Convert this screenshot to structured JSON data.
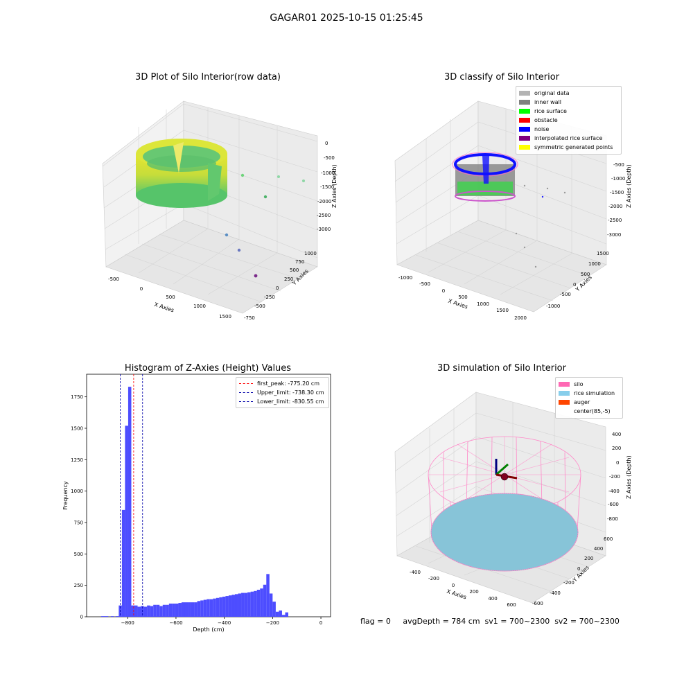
{
  "suptitle": "GAGAR01 2025-10-15 01:25:45",
  "footer": "flag = 0     avgDepth = 784 cm  sv1 = 700~2300  sv2 = 700~2300",
  "colors": {
    "grid": "#d9d9d9",
    "pane": "#f2f2f2",
    "pane_dark": "#e8e8e8"
  },
  "chart_data": [
    {
      "type": "scatter",
      "title": "3D Plot of Silo Interior(row data)",
      "xlabel": "X Axies",
      "ylabel": "Y Axies",
      "zlabel": "Z Axies (Depth)",
      "xticks": [
        "-500",
        "0",
        "500",
        "1000",
        "1500"
      ],
      "yticks": [
        "-750",
        "-500",
        "-250",
        "0",
        "250",
        "500",
        "750",
        "1000"
      ],
      "zticks": [
        "0",
        "-500",
        "-1000",
        "-1500",
        "-2000",
        "-2500",
        "-3000"
      ],
      "outliers": [
        {
          "label": "p1",
          "color": "#6fd47c"
        },
        {
          "label": "p2",
          "color": "#8fd7a6"
        },
        {
          "label": "p3",
          "color": "#4db36a"
        },
        {
          "label": "p4",
          "color": "#5b8fc4"
        },
        {
          "label": "p5",
          "color": "#6a78c0"
        },
        {
          "label": "p6",
          "color": "#7b2a8a"
        }
      ]
    },
    {
      "type": "scatter",
      "title": "3D classify of Silo Interior",
      "xlabel": "X Axies",
      "ylabel": "Y Axies",
      "zlabel": "Z Axies (Depth)",
      "xticks": [
        "-1000",
        "-500",
        "0",
        "500",
        "1000",
        "1500",
        "2000"
      ],
      "yticks": [
        "-1000",
        "-500",
        "0",
        "500",
        "1000",
        "1500"
      ],
      "zticks": [
        "-500",
        "-1000",
        "-1500",
        "-2000",
        "-2500",
        "-3000"
      ],
      "legend": [
        {
          "label": "original data",
          "color": "#b3b3b3"
        },
        {
          "label": "inner wall",
          "color": "#808080"
        },
        {
          "label": "rice surface",
          "color": "#00ff00"
        },
        {
          "label": "obstacle",
          "color": "#ff0000"
        },
        {
          "label": "noise",
          "color": "#0000ff"
        },
        {
          "label": "interpolated rice surface",
          "color": "#800080"
        },
        {
          "label": "symmetric generated points",
          "color": "#ffff00"
        }
      ]
    },
    {
      "type": "bar",
      "title": "Histogram of Z-Axies (Height) Values",
      "xlabel": "Depth (cm)",
      "ylabel": "Frequency",
      "xlim": [
        -970,
        40
      ],
      "ylim": [
        0,
        1930
      ],
      "xticks": [
        -800,
        -600,
        -400,
        -200,
        0
      ],
      "yticks": [
        0,
        250,
        500,
        750,
        1000,
        1250,
        1500,
        1750
      ],
      "bar_color": "#4d4dff",
      "bins": [
        {
          "x0": -910,
          "x1": -880,
          "v": 5
        },
        {
          "x0": -870,
          "x1": -857,
          "v": 5
        },
        {
          "x0": -850,
          "x1": -837,
          "v": 5
        },
        {
          "x0": -837,
          "x1": -824,
          "v": 90
        },
        {
          "x0": -824,
          "x1": -811,
          "v": 850
        },
        {
          "x0": -811,
          "x1": -798,
          "v": 1520
        },
        {
          "x0": -798,
          "x1": -785,
          "v": 1830
        },
        {
          "x0": -785,
          "x1": -772,
          "v": 90
        },
        {
          "x0": -772,
          "x1": -759,
          "v": 90
        },
        {
          "x0": -759,
          "x1": -746,
          "v": 80
        },
        {
          "x0": -746,
          "x1": -733,
          "v": 85
        },
        {
          "x0": -733,
          "x1": -720,
          "v": 80
        },
        {
          "x0": -720,
          "x1": -707,
          "v": 90
        },
        {
          "x0": -707,
          "x1": -694,
          "v": 85
        },
        {
          "x0": -694,
          "x1": -681,
          "v": 95
        },
        {
          "x0": -681,
          "x1": -668,
          "v": 95
        },
        {
          "x0": -668,
          "x1": -655,
          "v": 85
        },
        {
          "x0": -655,
          "x1": -642,
          "v": 95
        },
        {
          "x0": -642,
          "x1": -629,
          "v": 95
        },
        {
          "x0": -629,
          "x1": -616,
          "v": 105
        },
        {
          "x0": -616,
          "x1": -603,
          "v": 105
        },
        {
          "x0": -603,
          "x1": -590,
          "v": 105
        },
        {
          "x0": -590,
          "x1": -577,
          "v": 110
        },
        {
          "x0": -577,
          "x1": -564,
          "v": 115
        },
        {
          "x0": -564,
          "x1": -551,
          "v": 115
        },
        {
          "x0": -551,
          "x1": -538,
          "v": 115
        },
        {
          "x0": -538,
          "x1": -525,
          "v": 115
        },
        {
          "x0": -525,
          "x1": -512,
          "v": 115
        },
        {
          "x0": -512,
          "x1": -499,
          "v": 125
        },
        {
          "x0": -499,
          "x1": -486,
          "v": 130
        },
        {
          "x0": -486,
          "x1": -473,
          "v": 135
        },
        {
          "x0": -473,
          "x1": -460,
          "v": 140
        },
        {
          "x0": -460,
          "x1": -447,
          "v": 140
        },
        {
          "x0": -447,
          "x1": -434,
          "v": 145
        },
        {
          "x0": -434,
          "x1": -421,
          "v": 150
        },
        {
          "x0": -421,
          "x1": -408,
          "v": 155
        },
        {
          "x0": -408,
          "x1": -395,
          "v": 160
        },
        {
          "x0": -395,
          "x1": -382,
          "v": 165
        },
        {
          "x0": -382,
          "x1": -369,
          "v": 170
        },
        {
          "x0": -369,
          "x1": -356,
          "v": 175
        },
        {
          "x0": -356,
          "x1": -343,
          "v": 180
        },
        {
          "x0": -343,
          "x1": -330,
          "v": 185
        },
        {
          "x0": -330,
          "x1": -317,
          "v": 190
        },
        {
          "x0": -317,
          "x1": -304,
          "v": 190
        },
        {
          "x0": -304,
          "x1": -291,
          "v": 195
        },
        {
          "x0": -291,
          "x1": -278,
          "v": 200
        },
        {
          "x0": -278,
          "x1": -265,
          "v": 205
        },
        {
          "x0": -265,
          "x1": -252,
          "v": 215
        },
        {
          "x0": -252,
          "x1": -239,
          "v": 225
        },
        {
          "x0": -239,
          "x1": -226,
          "v": 255
        },
        {
          "x0": -226,
          "x1": -213,
          "v": 340
        },
        {
          "x0": -213,
          "x1": -200,
          "v": 185
        },
        {
          "x0": -200,
          "x1": -187,
          "v": 120
        },
        {
          "x0": -187,
          "x1": -174,
          "v": 40
        },
        {
          "x0": -174,
          "x1": -161,
          "v": 50
        },
        {
          "x0": -161,
          "x1": -148,
          "v": 15
        },
        {
          "x0": -148,
          "x1": -135,
          "v": 35
        }
      ],
      "lines": [
        {
          "label": "first_peak: -775.20 cm",
          "x": -775.2,
          "color": "#ff0000"
        },
        {
          "label": "Upper_limit: -738.30 cm",
          "x": -738.3,
          "color": "#0000aa"
        },
        {
          "label": "Lower_limit: -830.55 cm",
          "x": -830.55,
          "color": "#0000aa"
        }
      ]
    },
    {
      "type": "scatter",
      "title": "3D simulation of Silo Interior",
      "xlabel": "X Axies",
      "ylabel": "Y Axies",
      "zlabel": "Z Axies (Depth)",
      "xticks": [
        "-400",
        "-200",
        "0",
        "200",
        "400",
        "600"
      ],
      "yticks": [
        "-600",
        "-400",
        "-200",
        "0",
        "200",
        "400",
        "600"
      ],
      "zticks": [
        "400",
        "200",
        "0",
        "-200",
        "-400",
        "-600",
        "-800"
      ],
      "legend": [
        {
          "label": "silo",
          "color": "#ff69b4"
        },
        {
          "label": "rice simulation",
          "color": "#87ceeb"
        },
        {
          "label": "auger",
          "color": "#ff4500"
        },
        {
          "label": "center(85,-5)",
          "color": ""
        }
      ]
    }
  ]
}
